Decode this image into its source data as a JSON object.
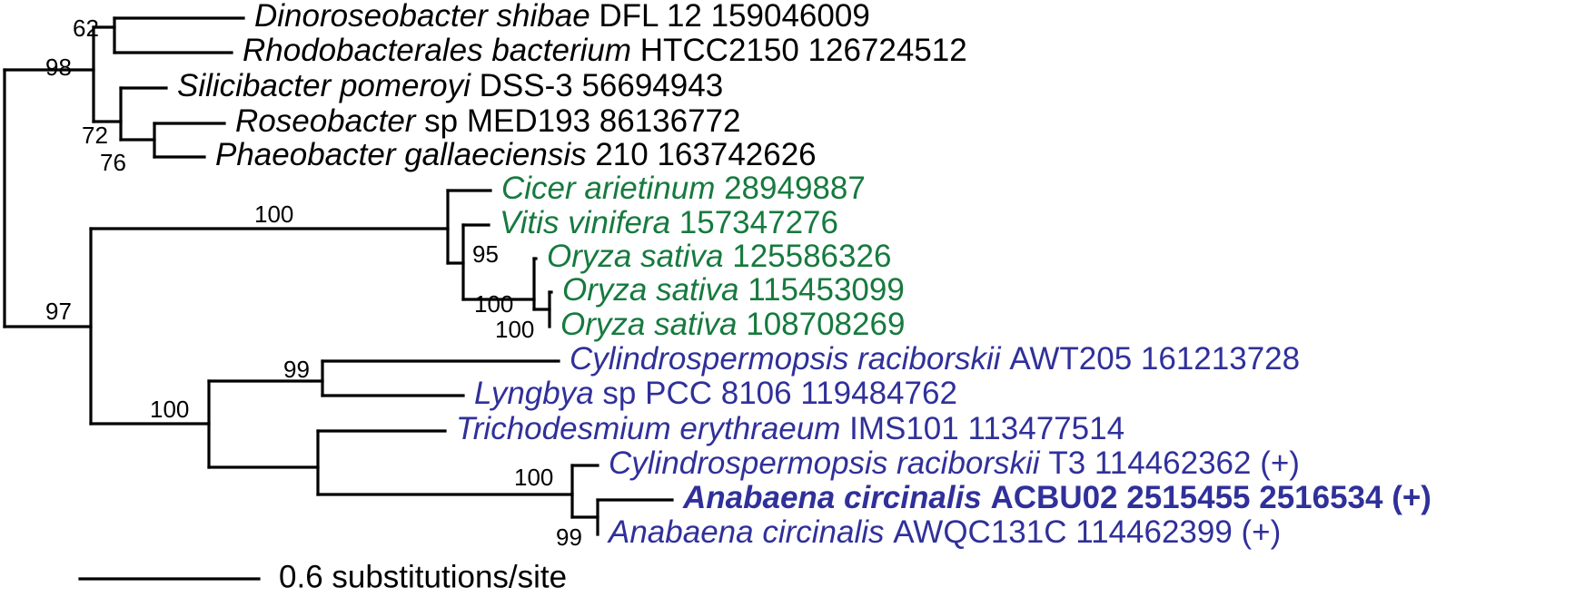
{
  "tree": {
    "leaves": [
      {
        "id": "dinoroseobacter",
        "italic": "Dinoroseobacter shibae",
        "rest": " DFL 12 159046009",
        "group": "proteobacteria",
        "bold": false
      },
      {
        "id": "rhodobacterales",
        "italic": "Rhodobacterales bacterium",
        "rest": " HTCC2150 126724512",
        "group": "proteobacteria",
        "bold": false
      },
      {
        "id": "silicibacter",
        "italic": "Silicibacter pomeroyi",
        "rest": " DSS-3 56694943",
        "group": "proteobacteria",
        "bold": false
      },
      {
        "id": "roseobacter",
        "italic": "Roseobacter",
        "rest": " sp MED193 86136772",
        "group": "proteobacteria",
        "bold": false
      },
      {
        "id": "phaeobacter",
        "italic": "Phaeobacter gallaeciensis",
        "rest": " 210 163742626",
        "group": "proteobacteria",
        "bold": false
      },
      {
        "id": "cicer",
        "italic": "Cicer arietinum",
        "rest": " 28949887",
        "group": "plants",
        "bold": false
      },
      {
        "id": "vitis",
        "italic": "Vitis vinifera",
        "rest": " 157347276",
        "group": "plants",
        "bold": false
      },
      {
        "id": "oryza-1",
        "italic": "Oryza sativa",
        "rest": " 125586326",
        "group": "plants",
        "bold": false
      },
      {
        "id": "oryza-2",
        "italic": "Oryza sativa",
        "rest": " 115453099",
        "group": "plants",
        "bold": false
      },
      {
        "id": "oryza-3",
        "italic": "Oryza sativa",
        "rest": " 108708269",
        "group": "plants",
        "bold": false
      },
      {
        "id": "cylindrospermopsis-awt205",
        "italic": "Cylindrospermopsis raciborskii",
        "rest": " AWT205 161213728",
        "group": "cyanobacteria",
        "bold": false
      },
      {
        "id": "lyngbya",
        "italic": "Lyngbya",
        "rest": " sp PCC 8106 119484762",
        "group": "cyanobacteria",
        "bold": false
      },
      {
        "id": "trichodesmium",
        "italic": "Trichodesmium erythraeum",
        "rest": " IMS101 113477514",
        "group": "cyanobacteria",
        "bold": false
      },
      {
        "id": "cylindrospermopsis-t3",
        "italic": "Cylindrospermopsis raciborskii",
        "rest": " T3 114462362 (+)",
        "group": "cyanobacteria",
        "bold": false
      },
      {
        "id": "anabaena-acbu02",
        "italic": "Anabaena circinalis",
        "rest": " ACBU02 2515455 2516534 (+)",
        "group": "cyanobacteria",
        "bold": true
      },
      {
        "id": "anabaena-awqc131c",
        "italic": "Anabaena circinalis",
        "rest": " AWQC131C 114462399 (+)",
        "group": "cyanobacteria",
        "bold": false
      }
    ],
    "support_values": [
      "62",
      "98",
      "72",
      "76",
      "100",
      "95",
      "100",
      "100",
      "97",
      "99",
      "100",
      "100",
      "99"
    ],
    "scale_bar": {
      "label": "0.6 substitutions/site"
    }
  },
  "colors": {
    "proteobacteria": "#000000",
    "plants": "#167a3e",
    "cyanobacteria": "#30309a",
    "branches": "#000000"
  }
}
